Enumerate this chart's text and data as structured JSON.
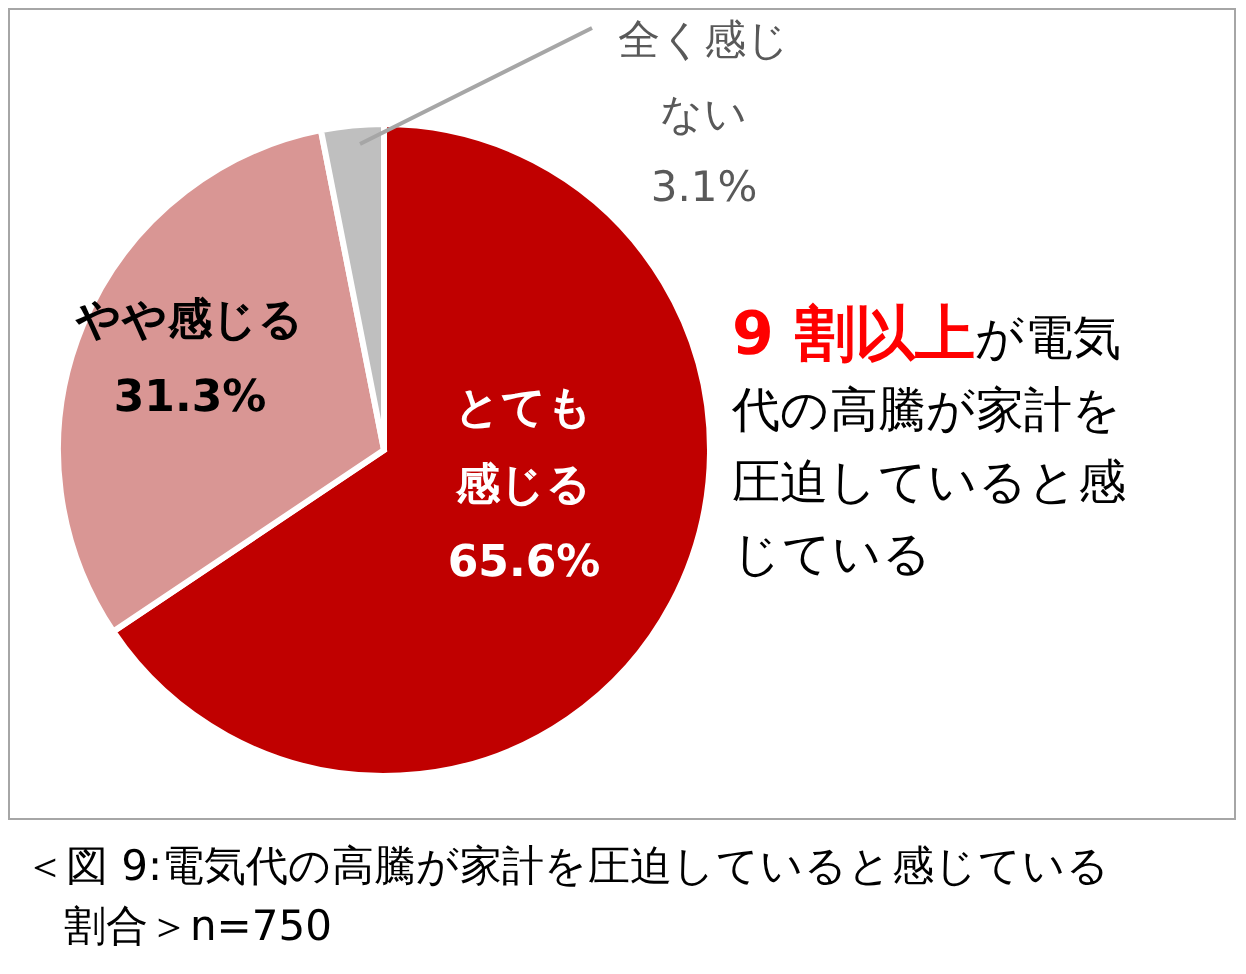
{
  "chart_data": {
    "type": "pie",
    "categories": [
      "とても感じる",
      "やや感じる",
      "全く感じない"
    ],
    "values": [
      65.6,
      31.3,
      3.1
    ],
    "colors": [
      "#c00000",
      "#d99694",
      "#bfbfbf"
    ],
    "value_labels": [
      "65.6%",
      "31.3%",
      "3.1%"
    ],
    "annotations": [
      "9 割以上",
      "が電気代の高騰が家計を圧迫していると感じている",
      "＜図 9:電気代の高騰が家計を圧迫していると感じている割合＞n=750"
    ]
  }
}
